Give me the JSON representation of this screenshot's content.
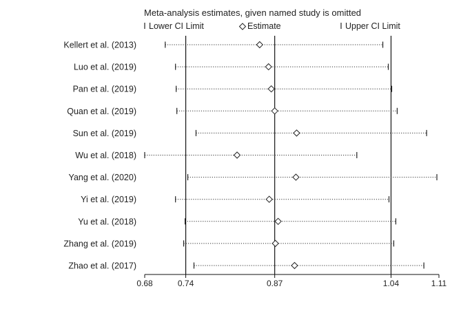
{
  "chart_data": {
    "type": "forest",
    "title": "Meta-analysis estimates, given named study is omitted",
    "legend": {
      "lower": "Lower CI Limit",
      "estimate": "Estimate",
      "upper": "Upper CI Limit"
    },
    "xlim": [
      0.68,
      1.11
    ],
    "xticks": [
      "0.68",
      "0.74",
      "0.87",
      "1.04",
      "1.11"
    ],
    "reference_lines": [
      0.74,
      0.87,
      1.04
    ],
    "studies": [
      {
        "label": "Kellert et al. (2013)",
        "lower": 0.71,
        "estimate": 0.848,
        "upper": 1.028
      },
      {
        "label": "Luo et al. (2019)",
        "lower": 0.725,
        "estimate": 0.861,
        "upper": 1.036
      },
      {
        "label": "Pan et al. (2019)",
        "lower": 0.726,
        "estimate": 0.865,
        "upper": 1.041
      },
      {
        "label": "Quan et al. (2019)",
        "lower": 0.727,
        "estimate": 0.87,
        "upper": 1.049
      },
      {
        "label": "Sun et al. (2019)",
        "lower": 0.755,
        "estimate": 0.902,
        "upper": 1.092
      },
      {
        "label": "Wu et al. (2018)",
        "lower": 0.68,
        "estimate": 0.815,
        "upper": 0.99
      },
      {
        "label": "Yang et al.  (2020)",
        "lower": 0.743,
        "estimate": 0.901,
        "upper": 1.107
      },
      {
        "label": "Yi et al. (2019)",
        "lower": 0.725,
        "estimate": 0.862,
        "upper": 1.037
      },
      {
        "label": "Yu et al. (2018)",
        "lower": 0.739,
        "estimate": 0.875,
        "upper": 1.047
      },
      {
        "label": "Zhang et al. (2019)",
        "lower": 0.737,
        "estimate": 0.871,
        "upper": 1.044
      },
      {
        "label": "Zhao et al. (2017)",
        "lower": 0.752,
        "estimate": 0.899,
        "upper": 1.088
      }
    ]
  }
}
